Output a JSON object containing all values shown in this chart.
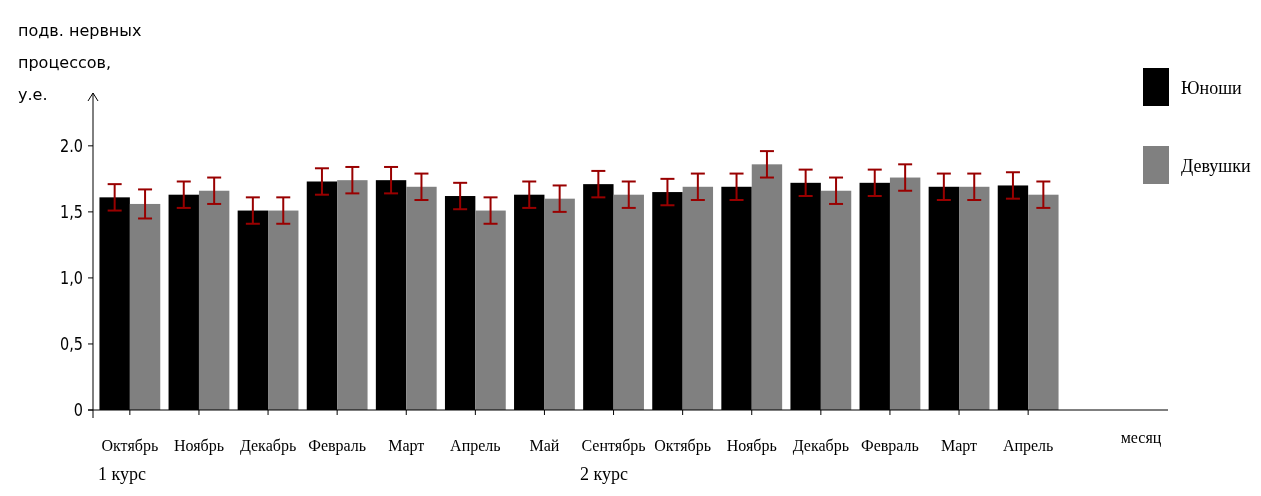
{
  "chart_data": {
    "type": "bar",
    "ylabel": "подв. нервных процессов, у.е.",
    "xlabel": "месяц",
    "categories": [
      "Октябрь",
      "Ноябрь",
      "Декабрь",
      "Февраль",
      "Март",
      "Апрель",
      "Май",
      "Сентябрь",
      "Октябрь",
      "Ноябрь",
      "Декабрь",
      "Февраль",
      "Март",
      "Апрель"
    ],
    "series": [
      {
        "name": "Юноши",
        "color": "#000000",
        "values": [
          1.61,
          1.63,
          1.51,
          1.73,
          1.74,
          1.62,
          1.63,
          1.71,
          1.65,
          1.69,
          1.72,
          1.72,
          1.69,
          1.7
        ],
        "errors": [
          0.1,
          0.1,
          0.1,
          0.1,
          0.1,
          0.1,
          0.1,
          0.1,
          0.1,
          0.1,
          0.1,
          0.1,
          0.1,
          0.1
        ]
      },
      {
        "name": "Девушки",
        "color": "#808080",
        "values": [
          1.56,
          1.66,
          1.51,
          1.74,
          1.69,
          1.51,
          1.6,
          1.63,
          1.69,
          1.86,
          1.66,
          1.76,
          1.69,
          1.63
        ],
        "errors": [
          0.11,
          0.1,
          0.1,
          0.1,
          0.1,
          0.1,
          0.1,
          0.1,
          0.1,
          0.1,
          0.1,
          0.1,
          0.1,
          0.1
        ]
      }
    ],
    "ylim": [
      0,
      2.4
    ],
    "yticks": [
      {
        "value": 0,
        "label": "0"
      },
      {
        "value": 0.5,
        "label": "0,5"
      },
      {
        "value": 1,
        "label": "1,0"
      },
      {
        "value": 1.5,
        "label": "1,5"
      },
      {
        "value": 2,
        "label": "2.0"
      }
    ],
    "legend": "right",
    "annotations": [
      "1 курс",
      "2 курс"
    ]
  }
}
